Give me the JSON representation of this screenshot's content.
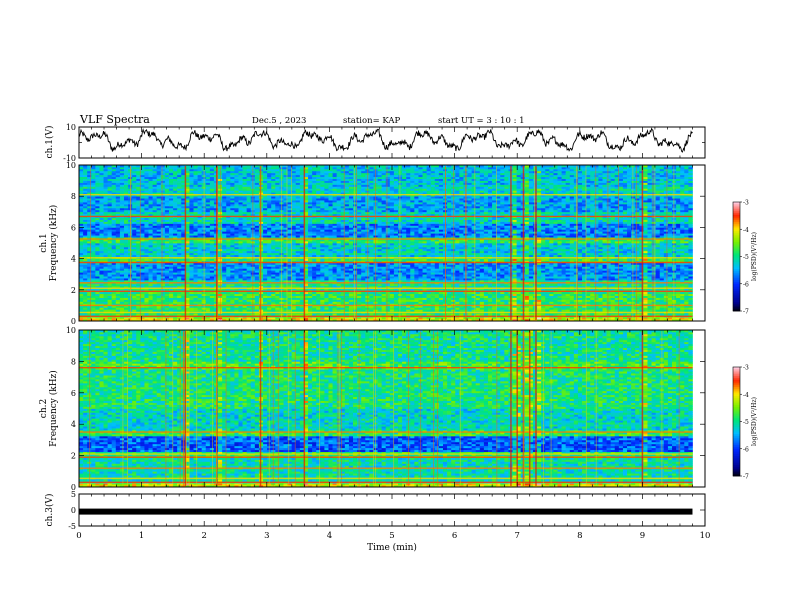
{
  "header": {
    "title": "VLF Spectra",
    "date": "Dec.5 , 2023",
    "station": "station= KAP",
    "start": "start UT = 3 : 10 : 1"
  },
  "chart_data": [
    {
      "id": "ch1-waveform",
      "type": "line",
      "ylabel": "ch.1(V)",
      "ylim": [
        -10,
        10
      ],
      "yticks": [
        "10",
        "-10"
      ],
      "xlim": [
        0,
        10
      ],
      "description_series": "noisy waveform oscillating roughly between -6 and 8 V over 0-9.8 min"
    },
    {
      "id": "ch1-spectrogram",
      "type": "heatmap",
      "ylabel_1": "ch.1",
      "ylabel_2": "Frequency (kHz)",
      "ylim": [
        0,
        10
      ],
      "yticks": [
        "0",
        "2",
        "4",
        "6",
        "8",
        "10"
      ],
      "xlim": [
        0,
        10
      ],
      "colorbar": {
        "label": "log(PSD)(V²/Hz)",
        "range": [
          -7,
          -3
        ],
        "ticks": [
          "-3",
          "-4",
          "-5",
          "-6",
          "-7"
        ]
      },
      "horizontal_lines_khz": [
        0.3,
        0.55,
        1.0,
        1.9,
        2.1,
        2.45,
        3.75,
        4.05,
        5.25,
        6.7,
        8.1
      ],
      "vertical_bursts_min": [
        1.7,
        2.2,
        2.9,
        3.6,
        6.9,
        7.1,
        7.3,
        9.0
      ]
    },
    {
      "id": "ch2-spectrogram",
      "type": "heatmap",
      "ylabel_1": "ch.2",
      "ylabel_2": "Frequency (kHz)",
      "ylim": [
        0,
        10
      ],
      "yticks": [
        "0",
        "2",
        "4",
        "6",
        "8",
        "10"
      ],
      "xlim": [
        0,
        10
      ],
      "colorbar": {
        "label": "log(PSD)(V²/Hz)",
        "range": [
          -7,
          -3
        ],
        "ticks": [
          "-3",
          "-4",
          "-5",
          "-6",
          "-7"
        ]
      },
      "horizontal_lines_khz": [
        0.3,
        0.55,
        1.2,
        1.9,
        2.1,
        3.5,
        7.6
      ],
      "vertical_bursts_min": [
        1.7,
        2.2,
        2.9,
        3.6,
        6.9,
        7.0,
        7.1,
        7.2,
        7.3,
        9.0
      ]
    },
    {
      "id": "ch3-waveform",
      "type": "line",
      "ylabel": "ch.3(V)",
      "ylim": [
        -5,
        5
      ],
      "yticks": [
        "5",
        "0",
        "-5"
      ],
      "xlim": [
        0,
        10
      ],
      "xticks": [
        "0",
        "1",
        "2",
        "3",
        "4",
        "5",
        "6",
        "7",
        "8",
        "9",
        "10"
      ],
      "xlabel": "Time (min)",
      "description_series": "thick flat band at about -0.5 V from 0 to 9.8 min"
    }
  ]
}
